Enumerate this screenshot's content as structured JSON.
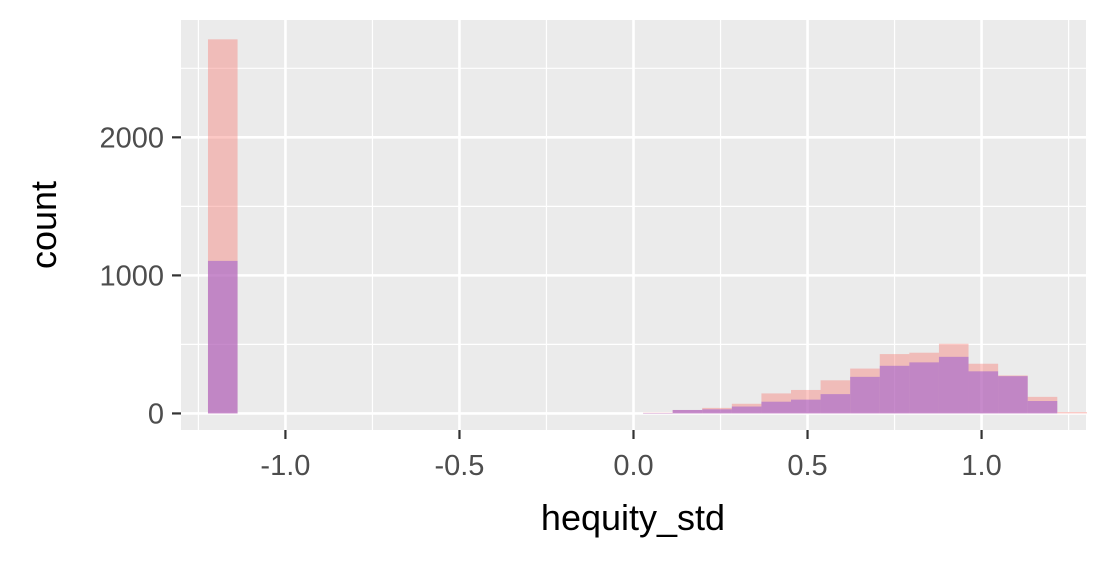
{
  "chart_data": {
    "type": "bar",
    "xlabel": "hequity_std",
    "ylabel": "count",
    "xlim": [
      -1.3,
      1.3
    ],
    "ylim": [
      -120,
      2850
    ],
    "x_ticks": [
      -1.0,
      -0.5,
      0.0,
      0.5,
      1.0
    ],
    "x_tick_labels": [
      "-1.0",
      "-0.5",
      "0.0",
      "0.5",
      "1.0"
    ],
    "y_ticks": [
      0,
      1000,
      2000
    ],
    "y_tick_labels": [
      "0",
      "1000",
      "2000"
    ],
    "grid": true,
    "legend": "none",
    "bin_width": 0.085,
    "series": [
      {
        "color": "#F8766D",
        "opacity": 0.4,
        "bins": [
          {
            "x": -1.18,
            "count": 2710
          },
          {
            "x": 0.07,
            "count": 5
          },
          {
            "x": 0.155,
            "count": 25
          },
          {
            "x": 0.24,
            "count": 40
          },
          {
            "x": 0.325,
            "count": 70
          },
          {
            "x": 0.41,
            "count": 145
          },
          {
            "x": 0.495,
            "count": 170
          },
          {
            "x": 0.58,
            "count": 240
          },
          {
            "x": 0.665,
            "count": 325
          },
          {
            "x": 0.75,
            "count": 430
          },
          {
            "x": 0.835,
            "count": 440
          },
          {
            "x": 0.92,
            "count": 505
          },
          {
            "x": 1.005,
            "count": 360
          },
          {
            "x": 1.09,
            "count": 275
          },
          {
            "x": 1.175,
            "count": 120
          },
          {
            "x": 1.26,
            "count": 10
          }
        ]
      },
      {
        "color": "#9B59D0",
        "opacity": 0.55,
        "bins": [
          {
            "x": -1.18,
            "count": 1105
          },
          {
            "x": 0.07,
            "count": 3
          },
          {
            "x": 0.155,
            "count": 25
          },
          {
            "x": 0.24,
            "count": 30
          },
          {
            "x": 0.325,
            "count": 50
          },
          {
            "x": 0.41,
            "count": 85
          },
          {
            "x": 0.495,
            "count": 100
          },
          {
            "x": 0.58,
            "count": 140
          },
          {
            "x": 0.665,
            "count": 265
          },
          {
            "x": 0.75,
            "count": 345
          },
          {
            "x": 0.835,
            "count": 370
          },
          {
            "x": 0.92,
            "count": 410
          },
          {
            "x": 1.005,
            "count": 305
          },
          {
            "x": 1.09,
            "count": 270
          },
          {
            "x": 1.175,
            "count": 90
          },
          {
            "x": 1.26,
            "count": 0
          }
        ]
      }
    ]
  }
}
